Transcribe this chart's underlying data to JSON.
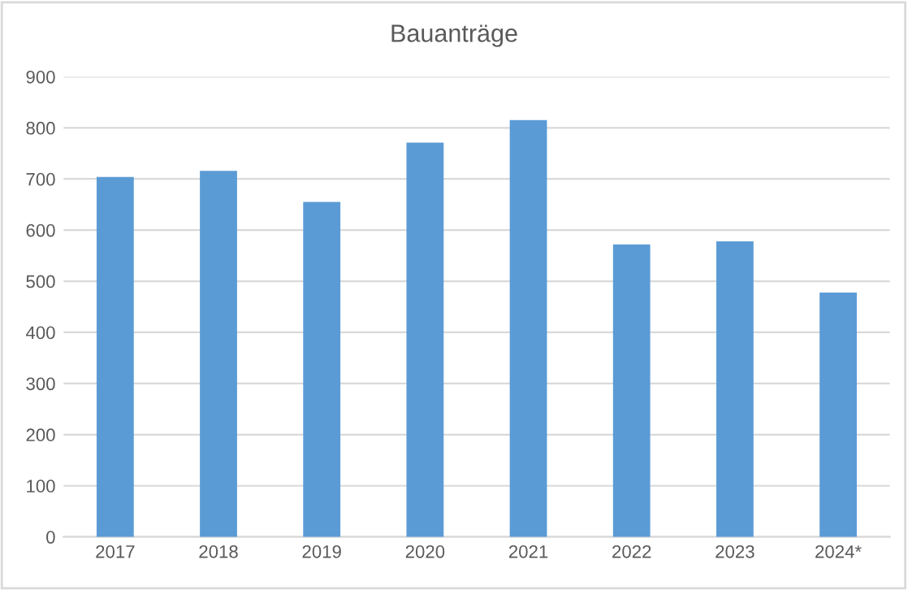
{
  "chart_data": {
    "type": "bar",
    "title": "Bauanträge",
    "categories": [
      "2017",
      "2018",
      "2019",
      "2020",
      "2021",
      "2022",
      "2023",
      "2024*"
    ],
    "values": [
      704,
      716,
      655,
      771,
      815,
      572,
      578,
      478
    ],
    "color": "#5b9bd5",
    "ylim": [
      0,
      900
    ],
    "yticks": [
      0,
      100,
      200,
      300,
      400,
      500,
      600,
      700,
      800,
      900
    ],
    "grid": "y"
  }
}
